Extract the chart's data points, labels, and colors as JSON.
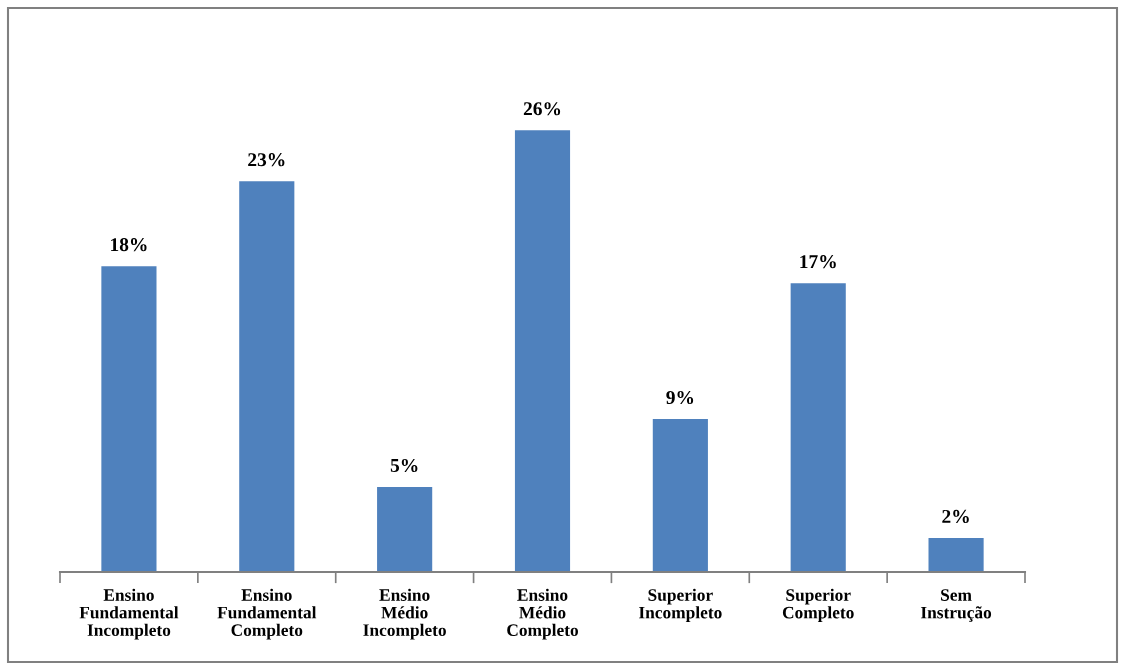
{
  "chart_data": {
    "type": "bar",
    "categories": [
      "Ensino\nFundamental\nIncompleto",
      "Ensino\nFundamental\nCompleto",
      "Ensino\nMédio\nIncompleto",
      "Ensino\nMédio\nCompleto",
      "Superior\nIncompleto",
      "Superior\nCompleto",
      "Sem\nInstrução"
    ],
    "values": [
      18,
      23,
      5,
      26,
      9,
      17,
      2
    ],
    "value_labels": [
      "18%",
      "23%",
      "5%",
      "26%",
      "9%",
      "17%",
      "2%"
    ],
    "color": "#4f81bd",
    "grid": false,
    "legend": false
  }
}
